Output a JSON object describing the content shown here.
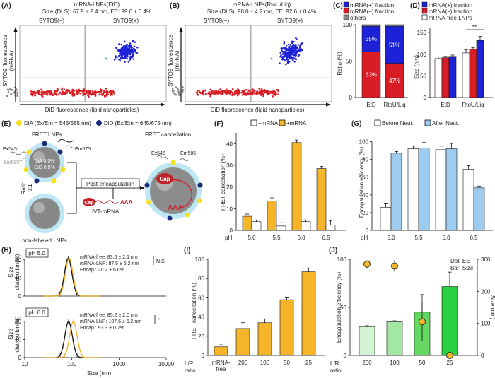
{
  "colors": {
    "red": "#d81e24",
    "blue": "#1e22d6",
    "orange": "#f5b52a",
    "lightblue": "#9ecbf0",
    "green1": "#d3f3d3",
    "green2": "#a2e8a2",
    "green3": "#63d863",
    "green4": "#2cd043",
    "cyan": "#8fd6ea",
    "sphere": "#888888",
    "gray": "#888888"
  },
  "panelA": {
    "letter": "(A)",
    "title": "mRNA-LNPs(EtD)",
    "subtitle": "Size (DLS): 67.9 ± 2.4 nm, EE: 99.6 ± 0.4%",
    "neg_label": "SYTO9(−)",
    "pos_label": "SYTO9(+)",
    "ylabel_1": "SYTO9 fluorescence",
    "ylabel_2": "(mRNA)"
  },
  "panelB": {
    "letter": "(B)",
    "title": "mRNA-LNPs(RtoU/Liq)",
    "subtitle": "Size (DLS): 98.0 ± 4.2 nm, EE: 92.6 ± 0.4%",
    "neg_label": "SYTO9(−)",
    "pos_label": "SYTO9(+)",
    "ylabel_1": "SYTO9 fluorescence",
    "ylabel_2": "(mRNA)"
  },
  "xlabel_AB": "DiD fluorescence (lipid nanoparticles)",
  "panelC": {
    "letter": "(C)",
    "legend": [
      "mRNA(+) fraction",
      "mRNA(−) fraction",
      "others"
    ],
    "ylabel": "Ratio (%)",
    "yticks": [
      "0",
      "50",
      "100"
    ],
    "chart_data": {
      "type": "bar",
      "stacked": true,
      "categories": [
        "EtD",
        "RtoU/Liq"
      ],
      "series": [
        {
          "name": "mRNA(−) fraction",
          "values": [
            63,
            47
          ]
        },
        {
          "name": "mRNA(+) fraction",
          "values": [
            35,
            51
          ]
        },
        {
          "name": "others",
          "values": [
            2,
            2
          ]
        }
      ],
      "ylim": [
        0,
        100
      ],
      "labels_red": [
        "63%",
        "47%"
      ],
      "labels_blue": [
        "35%",
        "51%"
      ]
    }
  },
  "panelD": {
    "letter": "(D)",
    "legend": [
      "mRNA(+) fraction",
      "mRNA(−) fraction",
      "mRNA-free LNPs"
    ],
    "ylabel": "Size (nm)",
    "yticks": [
      "0",
      "50",
      "100",
      "150"
    ],
    "sig": "**",
    "chart_data": {
      "type": "bar",
      "categories": [
        "EtD",
        "RtoU/Liq"
      ],
      "series": [
        {
          "name": "mRNA-free LNPs",
          "values": [
            90,
            103
          ],
          "err": [
            4,
            7
          ]
        },
        {
          "name": "mRNA(−) fraction",
          "values": [
            92,
            112
          ],
          "err": [
            3,
            3
          ]
        },
        {
          "name": "mRNA(+) fraction",
          "values": [
            95,
            132
          ],
          "err": [
            3,
            9
          ]
        }
      ],
      "ylim": [
        0,
        160
      ]
    }
  },
  "panelE": {
    "letter": "(E)",
    "dia": "DiA (Ex/Em = 545/585 nm)",
    "did": "DiD (Ex/Em = 645/675 nm)",
    "fret_lnps": "FRET LNPs",
    "ex545": "Ex545",
    "em675": "Em675",
    "em585": "Em585",
    "dia05": "DiA 0.5%",
    "did05": "DiD 0.5%",
    "ratio": "Ratio",
    "ratio_val": "9:1",
    "post": "Post-encapsulation",
    "ivt": "IVT-mRNA",
    "cap": "Cap",
    "aaa": "AAA",
    "nonlabeled": "non-labeled LNPs",
    "fret_cancel": "FRET cancellation",
    "ex545b": "Ex545",
    "em585b": "Em585"
  },
  "panelF": {
    "letter": "(F)",
    "legend": [
      "−mRNA",
      "+mRNA"
    ],
    "ylabel": "FRET cancellation (%)",
    "xlabel": "pH",
    "yticks": [
      "0",
      "10",
      "20",
      "30",
      "40"
    ],
    "chart_data": {
      "type": "bar",
      "categories": [
        "5.0",
        "5.5",
        "6.0",
        "6.5"
      ],
      "series": [
        {
          "name": "+mRNA",
          "values": [
            6.5,
            13.5,
            40.5,
            28.5
          ],
          "err": [
            1,
            1.5,
            1.2,
            1
          ]
        },
        {
          "name": "−mRNA",
          "values": [
            4,
            2,
            4,
            2.5
          ],
          "err": [
            0.8,
            1.5,
            0.8,
            2
          ]
        }
      ],
      "ylim": [
        0,
        45
      ]
    }
  },
  "panelG": {
    "letter": "(G)",
    "legend": [
      "Before Neut.",
      "After Neut."
    ],
    "ylabel": "Encapsulation efficiency (%)",
    "xlabel": "pH",
    "yticks": [
      "0",
      "20",
      "40",
      "60",
      "80",
      "100"
    ],
    "chart_data": {
      "type": "bar",
      "categories": [
        "5.0",
        "5.5",
        "6.0",
        "6.5"
      ],
      "series": [
        {
          "name": "Before Neut.",
          "values": [
            26,
            92,
            91,
            69
          ],
          "err": [
            4,
            3,
            4,
            4
          ]
        },
        {
          "name": "After Neut.",
          "values": [
            87,
            93,
            92,
            48
          ],
          "err": [
            2,
            6,
            6,
            2
          ]
        }
      ],
      "ylim": [
        0,
        110
      ]
    }
  },
  "panelH": {
    "letter": "(H)",
    "ylabel1": "Size",
    "ylabel2": "distribution(%)",
    "xlabel": "Size (nm)",
    "xticks": [
      "10",
      "100",
      "1000",
      "10000"
    ],
    "top": {
      "ph": "pH 5.0",
      "yticks": [
        "0",
        "10",
        "20"
      ],
      "l1": "mRNA-free: 83.6 ± 2.1 nm",
      "l2": "mRNA-LNP: 87.5 ± 5.2 nm",
      "l3": "Encap.: 20.2 ± 6.0%",
      "sig": "N.S.",
      "chart_data": {
        "type": "line",
        "xscale": "log",
        "peak_free": 83.6,
        "peak_lnp": 87.5,
        "peak_height": 21,
        "ylim": [
          0,
          25
        ],
        "xlim": [
          10,
          10000
        ]
      }
    },
    "bottom": {
      "ph": "pH 6.0",
      "yticks": [
        "0",
        "10",
        "20"
      ],
      "l1": "mRNA-free: 85.2 ± 2.0 nm",
      "l2": "mRNA-LNP: 107.6 ± 6.2 nm",
      "l3": "Encap.: 93.3 ± 0.7%",
      "sig": "*",
      "chart_data": {
        "type": "line",
        "xscale": "log",
        "peak_free": 85.2,
        "peak_lnp": 107.6,
        "peak_height": 20,
        "ylim": [
          0,
          25
        ],
        "xlim": [
          10,
          10000
        ]
      }
    }
  },
  "panelI": {
    "letter": "(I)",
    "ylabel": "FRET cancellation (%)",
    "xtitle1": "L/R",
    "xtitle2": "ratio",
    "yticks": [
      "0",
      "20",
      "40",
      "60",
      "80",
      "100"
    ],
    "chart_data": {
      "type": "bar",
      "categories": [
        "mRNA-\nfree",
        "200",
        "100",
        "50",
        "25"
      ],
      "cat_lines": [
        [
          "mRNA-",
          "free"
        ],
        [
          "200"
        ],
        [
          "100"
        ],
        [
          "50"
        ],
        [
          "25"
        ]
      ],
      "values": [
        9,
        28,
        34,
        58,
        87
      ],
      "err": [
        2,
        6,
        4,
        2,
        4
      ],
      "ylim": [
        0,
        100
      ]
    }
  },
  "panelJ": {
    "letter": "(J)",
    "legend1": "Dot: EE",
    "legend2": "Bar: Size",
    "ylabel_left": "Encapsulation efficiency (%)",
    "ylabel_right": "Size (nm)",
    "xtitle1": "L/R",
    "xtitle2": "ratio",
    "yticks_left": [
      "0",
      "50",
      "100"
    ],
    "yticks_right": [
      "0",
      "100",
      "200",
      "300"
    ],
    "chart_data": {
      "type": "bar",
      "categories": [
        "200",
        "100",
        "50",
        "25"
      ],
      "size_values": [
        90,
        105,
        135,
        215
      ],
      "size_err": [
        3,
        3,
        55,
        45
      ],
      "ee_values": [
        95,
        93,
        35,
        0
      ],
      "ee_err": [
        4,
        6,
        20,
        0
      ],
      "ylim_left": [
        0,
        100
      ],
      "ylim_right": [
        0,
        300
      ]
    }
  }
}
